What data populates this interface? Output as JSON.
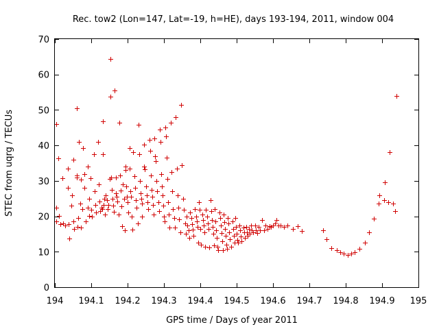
{
  "chart_data": {
    "type": "scatter",
    "title": "Rec. tow2 (Lon=147, Lat=-19, h=HE), days 193-194, 2011, window 004",
    "xlabel": "GPS time / Days of year 2011",
    "ylabel": "STEC from uqrg / TECUs",
    "xlim": [
      194,
      195
    ],
    "ylim": [
      0,
      70
    ],
    "xticks": [
      194,
      194.1,
      194.2,
      194.3,
      194.4,
      194.5,
      194.6,
      194.7,
      194.8,
      194.9,
      195
    ],
    "xtick_labels": [
      "194",
      "194.1",
      "194.2",
      "194.3",
      "194.4",
      "194.5",
      "194.6",
      "194.7",
      "194.8",
      "194.9",
      "195"
    ],
    "yticks": [
      0,
      10,
      20,
      30,
      40,
      50,
      60,
      70
    ],
    "ytick_labels": [
      "0",
      "10",
      "20",
      "30",
      "40",
      "50",
      "60",
      "70"
    ],
    "grid": false,
    "legend": "none",
    "marker": "+",
    "color": "#d00000",
    "series": [
      {
        "name": "STEC",
        "points": [
          [
            194.003,
            46
          ],
          [
            194.004,
            22.5
          ],
          [
            194.004,
            18.5
          ],
          [
            194.01,
            36.3
          ],
          [
            194.012,
            20.2
          ],
          [
            194.015,
            17.8
          ],
          [
            194.02,
            30.8
          ],
          [
            194.022,
            18
          ],
          [
            194.028,
            17.5
          ],
          [
            194.035,
            33.5
          ],
          [
            194.035,
            28
          ],
          [
            194.038,
            17.8
          ],
          [
            194.04,
            13.7
          ],
          [
            194.045,
            23
          ],
          [
            194.048,
            26
          ],
          [
            194.05,
            36
          ],
          [
            194.05,
            18.5
          ],
          [
            194.052,
            16.5
          ],
          [
            194.06,
            31.5
          ],
          [
            194.06,
            31
          ],
          [
            194.062,
            17
          ],
          [
            194.065,
            19.5
          ],
          [
            194.066,
            41
          ],
          [
            194.07,
            23.5
          ],
          [
            194.072,
            30.3
          ],
          [
            194.076,
            22
          ],
          [
            194.078,
            39.2
          ],
          [
            194.082,
            32
          ],
          [
            194.082,
            28
          ],
          [
            194.085,
            18.5
          ],
          [
            194.09,
            34
          ],
          [
            194.09,
            22.5
          ],
          [
            194.094,
            25
          ],
          [
            194.095,
            20.2
          ],
          [
            194.06,
            50.5
          ],
          [
            194.072,
            16.8
          ],
          [
            194.098,
            30.8
          ],
          [
            194.1,
            21.8
          ],
          [
            194.102,
            20
          ],
          [
            194.108,
            37.5
          ],
          [
            194.11,
            27
          ],
          [
            194.112,
            23.2
          ],
          [
            194.114,
            21
          ],
          [
            194.118,
            41
          ],
          [
            194.12,
            29
          ],
          [
            194.122,
            24.2
          ],
          [
            194.125,
            21.5
          ],
          [
            194.128,
            22.5
          ],
          [
            194.13,
            22
          ],
          [
            194.132,
            46.8
          ],
          [
            194.132,
            37.5
          ],
          [
            194.134,
            23.2
          ],
          [
            194.136,
            25
          ],
          [
            194.138,
            20.5
          ],
          [
            194.14,
            26
          ],
          [
            194.144,
            24.5
          ],
          [
            194.145,
            22
          ],
          [
            194.148,
            23.3
          ],
          [
            194.15,
            30.5
          ],
          [
            194.152,
            64.3
          ],
          [
            194.153,
            53.8
          ],
          [
            194.155,
            31
          ],
          [
            194.157,
            27.5
          ],
          [
            194.158,
            25
          ],
          [
            194.16,
            23
          ],
          [
            194.162,
            21.3
          ],
          [
            194.165,
            55.5
          ],
          [
            194.167,
            31
          ],
          [
            194.168,
            26.5
          ],
          [
            194.17,
            25.5
          ],
          [
            194.172,
            24.2
          ],
          [
            194.175,
            20.5
          ],
          [
            194.178,
            46.5
          ],
          [
            194.18,
            31.5
          ],
          [
            194.182,
            27.3
          ],
          [
            194.183,
            22.8
          ],
          [
            194.185,
            17.2
          ],
          [
            194.187,
            29
          ],
          [
            194.19,
            25
          ],
          [
            194.192,
            16
          ],
          [
            194.195,
            34
          ],
          [
            194.195,
            33
          ],
          [
            194.197,
            28.5
          ],
          [
            194.198,
            25.5
          ],
          [
            194.2,
            24
          ],
          [
            194.202,
            21
          ],
          [
            194.205,
            39.3
          ],
          [
            194.206,
            33.5
          ],
          [
            194.208,
            27
          ],
          [
            194.21,
            25.5
          ],
          [
            194.212,
            20
          ],
          [
            194.213,
            16.2
          ],
          [
            194.215,
            38
          ],
          [
            194.218,
            31.3
          ],
          [
            194.22,
            28
          ],
          [
            194.222,
            24.5
          ],
          [
            194.225,
            22.5
          ],
          [
            194.228,
            18
          ],
          [
            194.23,
            45.8
          ],
          [
            194.232,
            37.5
          ],
          [
            194.234,
            30
          ],
          [
            194.235,
            26.5
          ],
          [
            194.237,
            25
          ],
          [
            194.239,
            23.5
          ],
          [
            194.24,
            20
          ],
          [
            194.245,
            40.2
          ],
          [
            194.246,
            34
          ],
          [
            194.248,
            33.3
          ],
          [
            194.25,
            28.5
          ],
          [
            194.252,
            26
          ],
          [
            194.254,
            24
          ],
          [
            194.256,
            22
          ],
          [
            194.26,
            41.5
          ],
          [
            194.262,
            38.5
          ],
          [
            194.264,
            31.5
          ],
          [
            194.266,
            27.5
          ],
          [
            194.268,
            25.5
          ],
          [
            194.27,
            23.2
          ],
          [
            194.272,
            20.5
          ],
          [
            194.274,
            42
          ],
          [
            194.276,
            37
          ],
          [
            194.278,
            35.5
          ],
          [
            194.28,
            30
          ],
          [
            194.282,
            27
          ],
          [
            194.284,
            24
          ],
          [
            194.286,
            21.5
          ],
          [
            194.288,
            44.5
          ],
          [
            194.29,
            41
          ],
          [
            194.292,
            32
          ],
          [
            194.294,
            28.5
          ],
          [
            194.296,
            26
          ],
          [
            194.298,
            23
          ],
          [
            194.3,
            20
          ],
          [
            194.302,
            18.5
          ],
          [
            194.304,
            45
          ],
          [
            194.306,
            42.5
          ],
          [
            194.308,
            36.5
          ],
          [
            194.31,
            30.5
          ],
          [
            194.312,
            24
          ],
          [
            194.314,
            20.5
          ],
          [
            194.316,
            16.8
          ],
          [
            194.318,
            46.5
          ],
          [
            194.32,
            32.5
          ],
          [
            194.322,
            27
          ],
          [
            194.325,
            22
          ],
          [
            194.328,
            19.5
          ],
          [
            194.33,
            16.8
          ],
          [
            194.332,
            48
          ],
          [
            194.335,
            33.5
          ],
          [
            194.338,
            26
          ],
          [
            194.34,
            22.5
          ],
          [
            194.342,
            19.2
          ],
          [
            194.345,
            15.5
          ],
          [
            194.348,
            51.5
          ],
          [
            194.35,
            34.5
          ],
          [
            194.352,
            25
          ],
          [
            194.355,
            21.8
          ],
          [
            194.358,
            18
          ],
          [
            194.36,
            15
          ],
          [
            194.362,
            20
          ],
          [
            194.365,
            17.5
          ],
          [
            194.368,
            16
          ],
          [
            194.37,
            14
          ],
          [
            194.372,
            21
          ],
          [
            194.375,
            19.5
          ],
          [
            194.378,
            17.8
          ],
          [
            194.38,
            16.3
          ],
          [
            194.382,
            14.5
          ],
          [
            194.385,
            22
          ],
          [
            194.388,
            20
          ],
          [
            194.39,
            18.5
          ],
          [
            194.392,
            17
          ],
          [
            194.394,
            12.5
          ],
          [
            194.396,
            24
          ],
          [
            194.398,
            21.8
          ],
          [
            194.4,
            16.5
          ],
          [
            194.402,
            12
          ],
          [
            194.405,
            20.5
          ],
          [
            194.408,
            19
          ],
          [
            194.41,
            17.5
          ],
          [
            194.412,
            15.5
          ],
          [
            194.414,
            11.5
          ],
          [
            194.416,
            21.8
          ],
          [
            194.418,
            20
          ],
          [
            194.42,
            18
          ],
          [
            194.422,
            16.5
          ],
          [
            194.424,
            11.3
          ],
          [
            194.428,
            24.5
          ],
          [
            194.43,
            21.5
          ],
          [
            194.432,
            19
          ],
          [
            194.434,
            17
          ],
          [
            194.436,
            15
          ],
          [
            194.438,
            11.8
          ],
          [
            194.44,
            22
          ],
          [
            194.442,
            18.5
          ],
          [
            194.444,
            16
          ],
          [
            194.446,
            14
          ],
          [
            194.448,
            11.5
          ],
          [
            194.45,
            10.5
          ],
          [
            194.452,
            21
          ],
          [
            194.454,
            19.5
          ],
          [
            194.456,
            17.5
          ],
          [
            194.458,
            15.3
          ],
          [
            194.46,
            13
          ],
          [
            194.462,
            10.5
          ],
          [
            194.464,
            20.5
          ],
          [
            194.466,
            18.3
          ],
          [
            194.468,
            16.5
          ],
          [
            194.47,
            14.5
          ],
          [
            194.472,
            12
          ],
          [
            194.474,
            10.8
          ],
          [
            194.476,
            19.5
          ],
          [
            194.478,
            18
          ],
          [
            194.48,
            15.5
          ],
          [
            194.482,
            13.5
          ],
          [
            194.484,
            11.5
          ],
          [
            194.488,
            18.5
          ],
          [
            194.49,
            16.5
          ],
          [
            194.492,
            14.5
          ],
          [
            194.494,
            12.5
          ],
          [
            194.496,
            19.5
          ],
          [
            194.498,
            17
          ],
          [
            194.5,
            15
          ],
          [
            194.502,
            13.3
          ],
          [
            194.504,
            12.5
          ],
          [
            194.508,
            17.5
          ],
          [
            194.51,
            16
          ],
          [
            194.512,
            14.3
          ],
          [
            194.514,
            13
          ],
          [
            194.518,
            16.8
          ],
          [
            194.52,
            15.5
          ],
          [
            194.522,
            14
          ],
          [
            194.526,
            17
          ],
          [
            194.528,
            15.5
          ],
          [
            194.53,
            14.5
          ],
          [
            194.534,
            16.5
          ],
          [
            194.536,
            15
          ],
          [
            194.54,
            17.5
          ],
          [
            194.542,
            16
          ],
          [
            194.546,
            15.5
          ],
          [
            194.55,
            17.5
          ],
          [
            194.552,
            16
          ],
          [
            194.556,
            15.3
          ],
          [
            194.56,
            17
          ],
          [
            194.565,
            16
          ],
          [
            194.57,
            19
          ],
          [
            194.575,
            16
          ],
          [
            194.58,
            17.5
          ],
          [
            194.585,
            16.5
          ],
          [
            194.59,
            17.2
          ],
          [
            194.595,
            17
          ],
          [
            194.6,
            17.5
          ],
          [
            194.605,
            18
          ],
          [
            194.61,
            19
          ],
          [
            194.615,
            17.5
          ],
          [
            194.62,
            17.5
          ],
          [
            194.63,
            17
          ],
          [
            194.64,
            17.5
          ],
          [
            194.655,
            16.5
          ],
          [
            194.668,
            17.3
          ],
          [
            194.68,
            15.8
          ],
          [
            194.737,
            16
          ],
          [
            194.748,
            13.5
          ],
          [
            194.76,
            11
          ],
          [
            194.775,
            10.5
          ],
          [
            194.785,
            9.8
          ],
          [
            194.795,
            9.5
          ],
          [
            194.805,
            9
          ],
          [
            194.815,
            9.5
          ],
          [
            194.825,
            9.8
          ],
          [
            194.838,
            10.8
          ],
          [
            194.852,
            12.5
          ],
          [
            194.865,
            15.5
          ],
          [
            194.878,
            19.3
          ],
          [
            194.89,
            23.5
          ],
          [
            194.893,
            26
          ],
          [
            194.905,
            24.5
          ],
          [
            194.908,
            29.5
          ],
          [
            194.917,
            24
          ],
          [
            194.92,
            38
          ],
          [
            194.93,
            23.5
          ],
          [
            194.935,
            21.5
          ],
          [
            194.94,
            54
          ]
        ]
      }
    ]
  }
}
